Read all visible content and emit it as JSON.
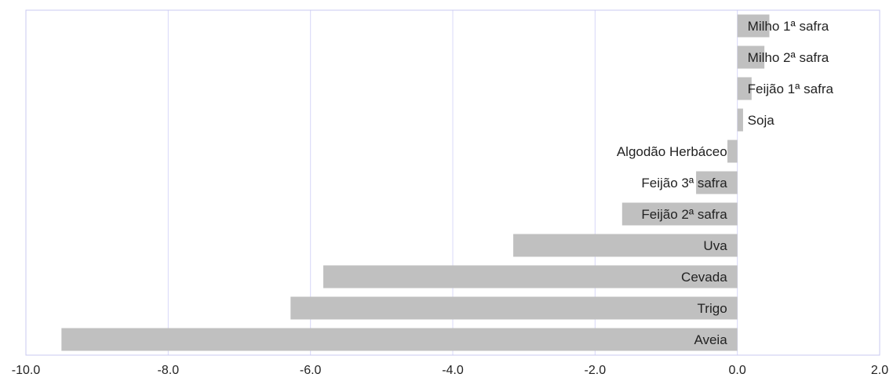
{
  "chart_data": {
    "type": "bar",
    "orientation": "horizontal",
    "categories": [
      "Milho 1ª safra",
      "Milho 2ª safra",
      "Feijão 1ª safra",
      "Soja",
      "Algodão Herbáceo",
      "Feijão 3ª safra",
      "Feijão 2ª safra",
      "Uva",
      "Cevada",
      "Trigo",
      "Aveia"
    ],
    "values": [
      0.45,
      0.38,
      0.2,
      0.08,
      -0.14,
      -0.58,
      -1.62,
      -3.15,
      -5.82,
      -6.28,
      -9.5
    ],
    "xlim": [
      -10.0,
      2.0
    ],
    "x_ticks": [
      "-10.0",
      "-8.0",
      "-6.0",
      "-4.0",
      "-2.0",
      "0.0",
      "2.0"
    ],
    "title": "",
    "xlabel": "",
    "ylabel": "",
    "grid": "vertical",
    "legend": "none",
    "colors": {
      "bar": "#c0c0c0",
      "grid": "#d8d8f8",
      "frame": "#c8c8f0",
      "text": "#222222"
    }
  }
}
